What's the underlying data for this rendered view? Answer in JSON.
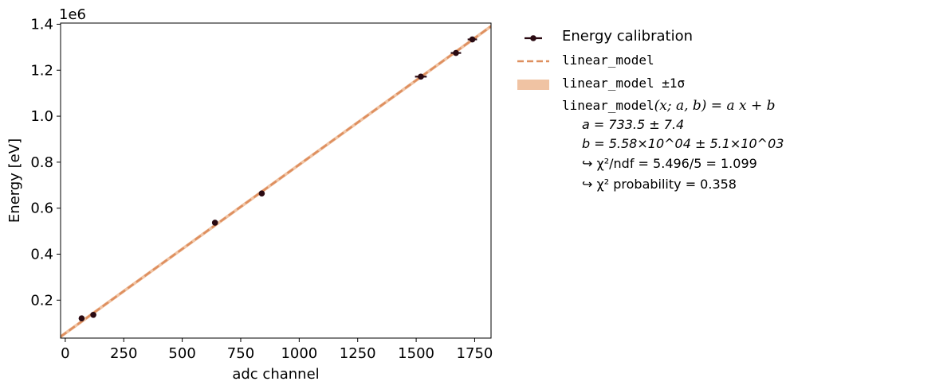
{
  "chart_data": {
    "type": "scatter",
    "xlabel": "adc channel",
    "ylabel": "Energy [eV]",
    "y_offset_label": "1e6",
    "xlim": [
      -20,
      1820
    ],
    "ylim": [
      0.035,
      1.405
    ],
    "xticks": [
      0,
      250,
      500,
      750,
      1000,
      1250,
      1500,
      1750
    ],
    "yticks": [
      0.2,
      0.4,
      0.6,
      0.8,
      1.0,
      1.2,
      1.4
    ],
    "ytick_labels": [
      "0.2",
      "0.4",
      "0.6",
      "0.8",
      "1.0",
      "1.2",
      "1.4"
    ],
    "grid": false,
    "legend_placement": "outside-right",
    "series": [
      {
        "name": "Energy calibration",
        "kind": "errorbar",
        "x": [
          70,
          120,
          640,
          840,
          1520,
          1670,
          1740
        ],
        "xerr": [
          8,
          6,
          12,
          10,
          25,
          22,
          20
        ],
        "y": [
          0.121,
          0.136,
          0.537,
          0.664,
          1.172,
          1.275,
          1.334
        ],
        "color": "#2a0a12"
      },
      {
        "name": "linear_model",
        "kind": "line",
        "slope": 733.5,
        "intercept": 55800,
        "color": "#de8f5f"
      }
    ],
    "band_label": "linear_model ±1σ",
    "band_color": "#f0c3a3",
    "fit_text": {
      "formula_name": "linear_model",
      "formula_args": "(x; a, b) = a x + b",
      "a_line": "a = 733.5 ± 7.4",
      "b_line": "b = 5.58×10^04 ± 5.1×10^03",
      "chi2ndf_line": "↪ χ²/ndf = 5.496/5 = 1.099",
      "chi2prob_line": "↪ χ² probability = 0.358"
    }
  }
}
